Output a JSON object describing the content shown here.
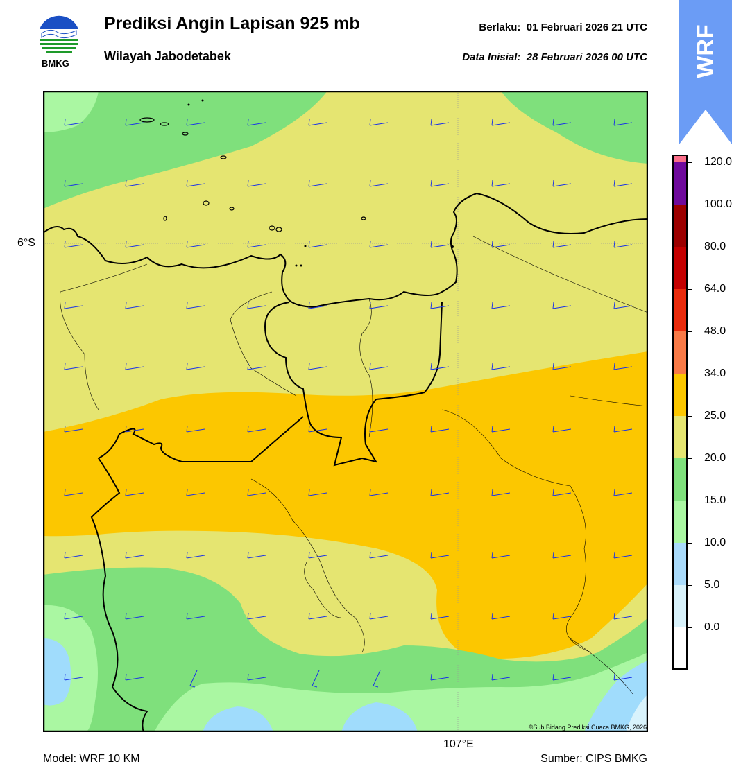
{
  "header": {
    "logo_text": "BMKG",
    "title": "Prediksi Angin Lapisan 925 mb",
    "subtitle": "Wilayah Jabodetabek",
    "valid_label": "Berlaku:",
    "valid_time": "01 Februari 2026 21 UTC",
    "init_label": "Data Inisial:",
    "init_time": "28 Februari 2026 00 UTC"
  },
  "badge": {
    "text": "WRF",
    "color": "#6b9cf5"
  },
  "map": {
    "lat_label": "6°S",
    "lon_label": "107°E",
    "credit": "©Sub Bidang Prediksi Cuaca BMKG, 2026",
    "wind_barb_color": "#1a33e6",
    "colors": {
      "light_green": "#aaf7a2",
      "green": "#7fe07c",
      "yellow": "#e5e571",
      "orange_yellow": "#fcc700",
      "light_blue": "#a0dcfc"
    }
  },
  "colorbar": {
    "labels": [
      "120.0",
      "100.0",
      "80.0",
      "64.0",
      "48.0",
      "34.0",
      "25.0",
      "20.0",
      "15.0",
      "10.0",
      "5.0",
      "0.0"
    ],
    "colors": [
      "#ffffff",
      "#d9f3fc",
      "#aadcfc",
      "#aaf7a2",
      "#7fe07c",
      "#e5e571",
      "#fcc700",
      "#f97a47",
      "#ea2b0c",
      "#c40000",
      "#9c0000",
      "#6f0a9c",
      "#fb6f8a"
    ]
  },
  "footer": {
    "model": "Model: WRF 10 KM",
    "source": "Sumber: CIPS BMKG"
  }
}
